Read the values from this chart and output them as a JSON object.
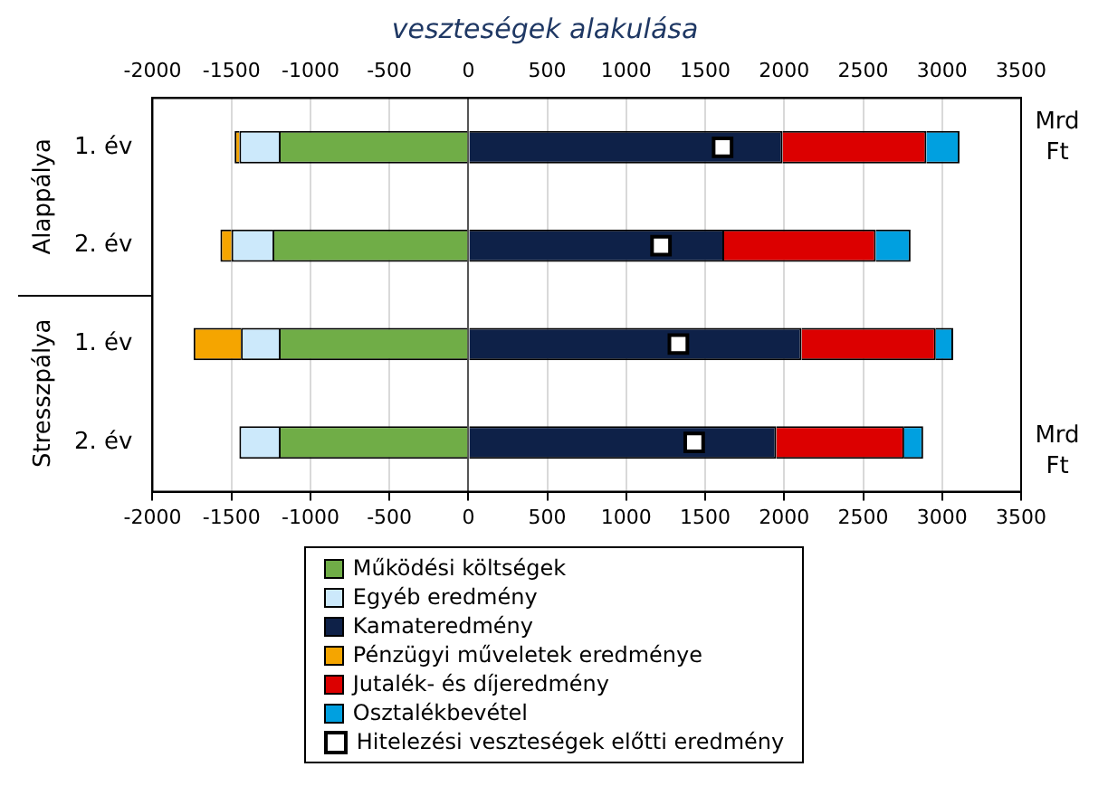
{
  "chart_data": {
    "type": "bar",
    "orientation": "horizontal",
    "stacked": true,
    "title": "veszteségek alakulása",
    "xlabel": "Mrd Ft",
    "x2label": "Mrd Ft",
    "categories": [
      "1. év",
      "2. év",
      "1. év",
      "2. év"
    ],
    "annotations": [
      "Alappálya",
      "Stresszpálya"
    ],
    "xlim": [
      -2000,
      3500
    ],
    "xticks": [
      -2000,
      -1500,
      -1000,
      -500,
      0,
      500,
      1000,
      1500,
      2000,
      2500,
      3000,
      3500
    ],
    "x2lim": [
      -2000,
      3500
    ],
    "x2ticks": [
      -2000,
      -1500,
      -1000,
      -500,
      0,
      500,
      1000,
      1500,
      2000,
      2500,
      3000,
      3500
    ],
    "grid": "x",
    "legend": "bottom",
    "series": [
      {
        "name": "Működési költségek",
        "color": "#70ad47",
        "values": [
          -1200,
          -1240,
          -1200,
          -1200
        ]
      },
      {
        "name": "Egyéb eredmény",
        "color": "#cce9fb",
        "values": [
          -250,
          -260,
          -240,
          -250
        ]
      },
      {
        "name": "Kamateredmény",
        "color": "#0e2148",
        "values": [
          1990,
          1620,
          2110,
          1950
        ]
      },
      {
        "name": "Pénzügyi műveletek eredménye",
        "color": "#f5a500",
        "values": [
          -30,
          -70,
          -300,
          null
        ]
      },
      {
        "name": "Jutalék- és díjeredmény",
        "color": "#dc0000",
        "values": [
          910,
          960,
          850,
          810
        ]
      },
      {
        "name": "Osztalékbevétel",
        "color": "#00a0e0",
        "values": [
          210,
          220,
          110,
          120
        ]
      },
      {
        "name": "Hitelezési veszteségek előtti eredmény",
        "type": "scatter",
        "marker": "square",
        "color": "#ffffff",
        "values": [
          1610,
          1220,
          1330,
          1430
        ]
      }
    ]
  }
}
